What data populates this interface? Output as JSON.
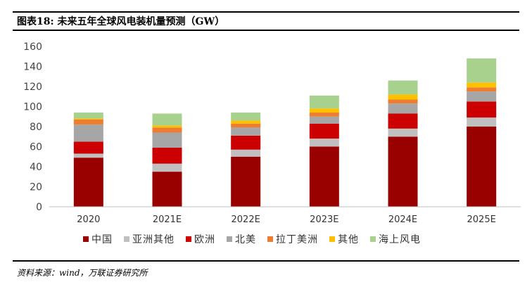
{
  "header": {
    "title": "图表18:  未来五年全球风电装机量预测（GW）"
  },
  "footer": {
    "source": "资料来源：wind，万联证券研究所"
  },
  "chart_data": {
    "type": "bar",
    "stacked": true,
    "categories": [
      "2020",
      "2021E",
      "2022E",
      "2023E",
      "2024E",
      "2025E"
    ],
    "ylim": [
      0,
      160
    ],
    "yticks": [
      0,
      20,
      40,
      60,
      80,
      100,
      120,
      140,
      160
    ],
    "grid": false,
    "legend_position": "bottom",
    "series": [
      {
        "name": "中国",
        "color": "#990000",
        "values": [
          49,
          35,
          50,
          60,
          70,
          80
        ]
      },
      {
        "name": "亚洲其他",
        "color": "#c0c0c0",
        "values": [
          4,
          8,
          7,
          8,
          8,
          9
        ]
      },
      {
        "name": "欧洲",
        "color": "#cc0000",
        "values": [
          12,
          16,
          14,
          15,
          15,
          16
        ]
      },
      {
        "name": "北美",
        "color": "#a6a6a6",
        "values": [
          17,
          15,
          8,
          7,
          10,
          10
        ]
      },
      {
        "name": "拉丁美洲",
        "color": "#ed7d31",
        "values": [
          5,
          5,
          4,
          4,
          4,
          4
        ]
      },
      {
        "name": "其他",
        "color": "#ffc000",
        "values": [
          1,
          2,
          3,
          4,
          5,
          5
        ]
      },
      {
        "name": "海上风电",
        "color": "#a9d18e",
        "values": [
          6,
          12,
          8,
          13,
          14,
          24
        ]
      }
    ]
  }
}
